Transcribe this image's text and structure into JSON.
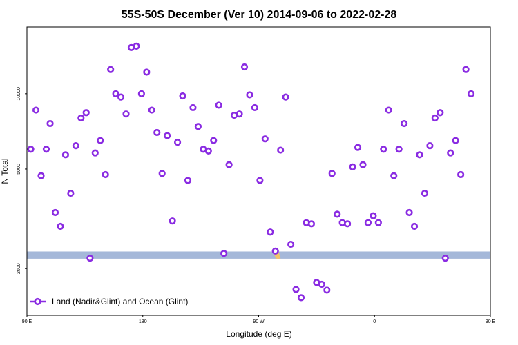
{
  "chart_data": {
    "type": "scatter",
    "title": "55S-50S December (Ver 10)   2014-09-06 to 2022-02-28",
    "xlabel": "Longitude (deg E)",
    "ylabel": "N Total",
    "y_scale": "log",
    "xlim": [
      90,
      450
    ],
    "ylim": [
      1300,
      18500
    ],
    "x_ticks": [
      {
        "value": 90,
        "label": "90 E"
      },
      {
        "value": 180,
        "label": "180"
      },
      {
        "value": 270,
        "label": "90 W"
      },
      {
        "value": 360,
        "label": "0"
      },
      {
        "value": 450,
        "label": "90 E"
      },
      {
        "value": 540,
        "label": "180"
      }
    ],
    "y_ticks": [
      {
        "value": 2000,
        "label": "2000"
      },
      {
        "value": 5000,
        "label": "5000"
      },
      {
        "value": 10000,
        "label": "10000"
      }
    ],
    "band": {
      "value_low": 2190,
      "value_high": 2340,
      "color": "#a5b8d9"
    },
    "band_accent_color": "#f2c46b",
    "marker_color": "#8a2be2",
    "legend": {
      "position": "bottom-left",
      "label": "Land (Nadir&Glint) and Ocean (Glint)"
    },
    "series": [
      {
        "name": "Land (Nadir&Glint) and Ocean (Glint)",
        "points": [
          [
            93,
            6000
          ],
          [
            97,
            8600
          ],
          [
            101,
            4700
          ],
          [
            105,
            6000
          ],
          [
            108,
            7600
          ],
          [
            112,
            3350
          ],
          [
            116,
            2950
          ],
          [
            120,
            5700
          ],
          [
            124,
            4000
          ],
          [
            128,
            6200
          ],
          [
            132,
            8000
          ],
          [
            136,
            8400
          ],
          [
            139,
            2200
          ],
          [
            143,
            5800
          ],
          [
            147,
            6500
          ],
          [
            151,
            4750
          ],
          [
            155,
            12500
          ],
          [
            159,
            10000
          ],
          [
            163,
            9700
          ],
          [
            167,
            8300
          ],
          [
            171,
            15300
          ],
          [
            175,
            15500
          ],
          [
            179,
            10000
          ],
          [
            183,
            12200
          ],
          [
            187,
            8600
          ],
          [
            191,
            7000
          ],
          [
            195,
            4800
          ],
          [
            199,
            6800
          ],
          [
            203,
            3100
          ],
          [
            207,
            6400
          ],
          [
            211,
            9800
          ],
          [
            215,
            4500
          ],
          [
            219,
            8800
          ],
          [
            223,
            7400
          ],
          [
            227,
            6000
          ],
          [
            231,
            5900
          ],
          [
            235,
            6500
          ],
          [
            239,
            9000
          ],
          [
            243,
            2300
          ],
          [
            247,
            5200
          ],
          [
            251,
            8200
          ],
          [
            255,
            8300
          ],
          [
            259,
            12800
          ],
          [
            263,
            9900
          ],
          [
            267,
            8800
          ],
          [
            271,
            4500
          ],
          [
            275,
            6600
          ],
          [
            279,
            2800
          ],
          [
            283,
            2350
          ],
          [
            287,
            5950
          ],
          [
            291,
            9700
          ],
          [
            295,
            2500
          ],
          [
            299,
            1650
          ],
          [
            303,
            1530
          ],
          [
            307,
            3050
          ],
          [
            311,
            3020
          ],
          [
            315,
            1760
          ],
          [
            319,
            1730
          ],
          [
            323,
            1640
          ],
          [
            327,
            4800
          ],
          [
            331,
            3300
          ],
          [
            335,
            3050
          ],
          [
            339,
            3020
          ],
          [
            343,
            5100
          ],
          [
            347,
            6100
          ],
          [
            351,
            5200
          ],
          [
            355,
            3050
          ],
          [
            359,
            3250
          ],
          [
            363,
            3050
          ],
          [
            367,
            6000
          ],
          [
            371,
            8600
          ],
          [
            375,
            4700
          ],
          [
            379,
            6000
          ],
          [
            383,
            7600
          ],
          [
            387,
            3350
          ],
          [
            391,
            2950
          ],
          [
            395,
            5700
          ],
          [
            399,
            4000
          ],
          [
            403,
            6200
          ],
          [
            407,
            8000
          ],
          [
            411,
            8400
          ],
          [
            415,
            2200
          ],
          [
            419,
            5800
          ],
          [
            423,
            6500
          ],
          [
            427,
            4750
          ],
          [
            431,
            12500
          ],
          [
            435,
            10000
          ]
        ]
      }
    ]
  }
}
